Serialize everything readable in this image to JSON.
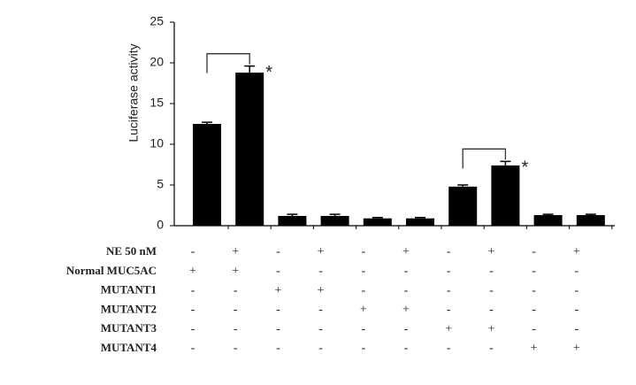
{
  "chart_data": {
    "type": "bar",
    "y_label": "Luciferase activity",
    "categories": [
      null,
      null,
      null,
      null,
      null,
      null,
      null,
      null,
      null,
      null
    ],
    "values": [
      12.5,
      18.8,
      1.2,
      1.2,
      0.9,
      0.9,
      4.8,
      7.4,
      1.3,
      1.3
    ],
    "errors": [
      0.2,
      0.8,
      0.2,
      0.2,
      0.1,
      0.1,
      0.2,
      0.5,
      0.1,
      0.1
    ],
    "color": "#000000",
    "ylim": [
      0,
      25
    ],
    "yticks": [
      0,
      5,
      10,
      15,
      20,
      25
    ],
    "annotations": [
      "*",
      "*"
    ],
    "table": {
      "rows": [
        {
          "label": "NE 50 nM",
          "cells": [
            "-",
            "+",
            "-",
            "+",
            "-",
            "+",
            "-",
            "+",
            "-",
            "+"
          ]
        },
        {
          "label": "Normal MUC5AC",
          "cells": [
            "+",
            "+",
            "-",
            "-",
            "-",
            "-",
            "-",
            "-",
            "-",
            "-"
          ]
        },
        {
          "label": "MUTANT1",
          "cells": [
            "-",
            "-",
            "+",
            "+",
            "-",
            "-",
            "-",
            "-",
            "-",
            "-"
          ]
        },
        {
          "label": "MUTANT2",
          "cells": [
            "-",
            "-",
            "-",
            "-",
            "+",
            "+",
            "-",
            "-",
            "-",
            "-"
          ]
        },
        {
          "label": "MUTANT3",
          "cells": [
            "-",
            "-",
            "-",
            "-",
            "-",
            "-",
            "+",
            "+",
            "-",
            "-"
          ]
        },
        {
          "label": "MUTANT4",
          "cells": [
            "-",
            "-",
            "-",
            "-",
            "-",
            "-",
            "-",
            "-",
            "+",
            "+"
          ]
        }
      ]
    }
  }
}
